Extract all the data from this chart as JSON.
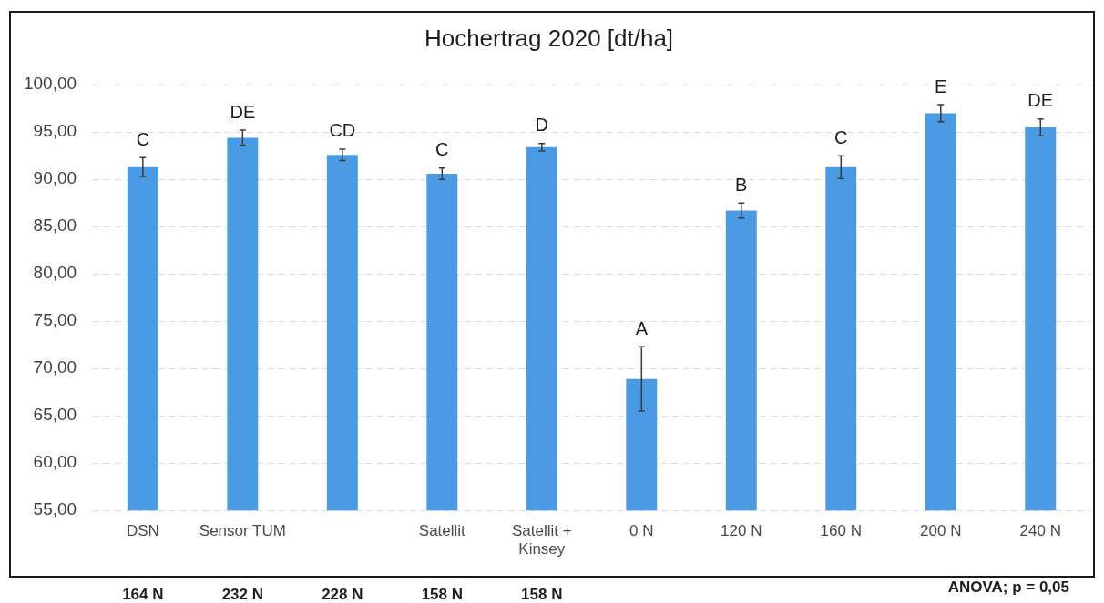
{
  "chart_data": {
    "type": "bar",
    "title": "Hochertrag 2020 [dt/ha]",
    "categories": [
      "DSN",
      "Sensor TUM",
      null,
      "Satellit",
      "Satellit + Kinsey",
      "0 N",
      "120 N",
      "160 N",
      "200 N",
      "240 N"
    ],
    "values": [
      91.3,
      94.4,
      92.6,
      90.6,
      93.4,
      68.9,
      86.7,
      91.3,
      97.0,
      95.5
    ],
    "errors": [
      1.0,
      0.8,
      0.6,
      0.6,
      0.4,
      3.4,
      0.8,
      1.2,
      0.9,
      0.9
    ],
    "color": "#4a9be3",
    "ylim": [
      55,
      100
    ],
    "yticks": [
      {
        "value": 55,
        "label": "55,00"
      },
      {
        "value": 60,
        "label": "60,00"
      },
      {
        "value": 65,
        "label": "65,00"
      },
      {
        "value": 70,
        "label": "70,00"
      },
      {
        "value": 75,
        "label": "75,00"
      },
      {
        "value": 80,
        "label": "80,00"
      },
      {
        "value": 85,
        "label": "85,00"
      },
      {
        "value": 90,
        "label": "90,00"
      },
      {
        "value": 95,
        "label": "95,00"
      },
      {
        "value": 100,
        "label": "100,00"
      }
    ],
    "grid": "y",
    "annotations": [
      {
        "text": "C",
        "x": "DSN",
        "y": 92.3
      },
      {
        "text": "DE",
        "x": "Sensor TUM",
        "y": 95.2
      },
      {
        "text": "CD",
        "y": 93.2
      },
      {
        "text": "C",
        "x": "Satellit",
        "y": 91.2
      },
      {
        "text": "D",
        "x": "Satellit + Kinsey",
        "y": 93.8
      },
      {
        "text": "A",
        "x": "0 N",
        "y": 72.3
      },
      {
        "text": "B",
        "x": "120 N",
        "y": 87.5
      },
      {
        "text": "C",
        "x": "160 N",
        "y": 92.5
      },
      {
        "text": "E",
        "x": "200 N",
        "y": 97.9
      },
      {
        "text": "DE",
        "x": "240 N",
        "y": 96.4
      },
      "164 N",
      "232 N",
      "228 N",
      "158 N",
      "158 N",
      "ANOVA; p = 0,05"
    ]
  }
}
